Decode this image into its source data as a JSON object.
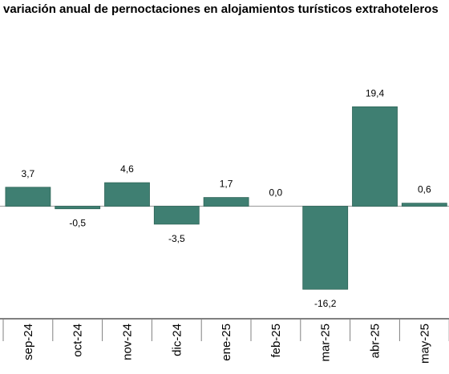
{
  "chart_data": {
    "type": "bar",
    "title": "variación anual de pernoctaciones en alojamientos turísticos extrahoteleros",
    "xlabel": "",
    "ylabel": "",
    "categories": [
      "sep-24",
      "oct-24",
      "nov-24",
      "dic-24",
      "ene-25",
      "feb-25",
      "mar-25",
      "abr-25",
      "may-25"
    ],
    "values": [
      3.7,
      -0.5,
      4.6,
      -3.5,
      1.7,
      0.0,
      -16.2,
      19.4,
      0.6
    ],
    "data_labels": [
      "3,7",
      "-0,5",
      "4,6",
      "-3,5",
      "1,7",
      "0,0",
      "-16,2",
      "19,4",
      "0,6"
    ],
    "ylim": [
      -18,
      22
    ],
    "grid": false,
    "legend": "none",
    "colors": {
      "bar": "#3f7f72",
      "bar_outline": "#2e6457",
      "baseline": "#a6a6a6",
      "axis": "#000000",
      "tick": "#808080"
    }
  }
}
